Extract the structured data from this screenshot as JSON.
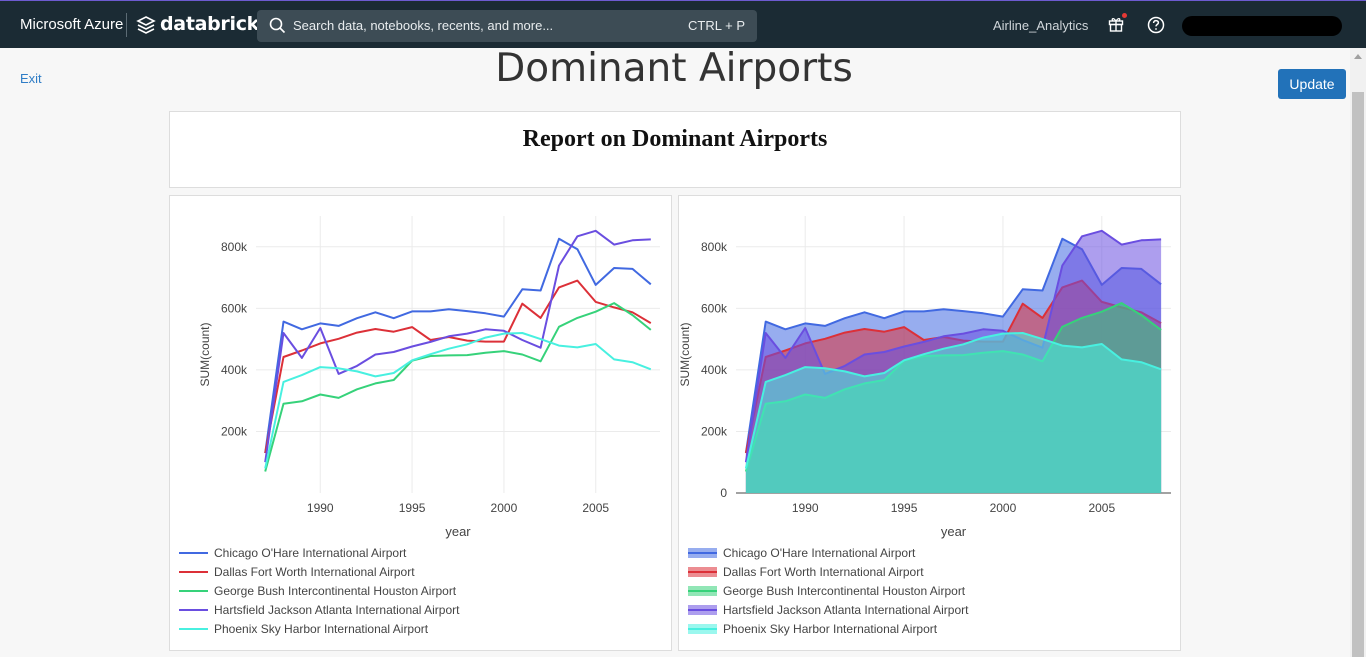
{
  "topbar": {
    "brand": "Microsoft Azure",
    "product": "databricks",
    "search_placeholder": "Search data, notebooks, recents, and more...",
    "search_shortcut": "CTRL + P",
    "workspace": "Airline_Analytics"
  },
  "page": {
    "exit_label": "Exit",
    "title": "Dominant Airports",
    "update_label": "Update",
    "report_title": "Report on Dominant Airports"
  },
  "chart_data": [
    {
      "type": "line",
      "xlabel": "year",
      "ylabel": "SUM(count)",
      "x_ticks": [
        1990,
        1995,
        2000,
        2005
      ],
      "y_ticks": [
        "200k",
        "400k",
        "600k",
        "800k"
      ],
      "ylim": [
        0,
        900000
      ],
      "xlim": [
        1986.5,
        2008.5
      ],
      "grid": true,
      "legend": "bottom-left",
      "x": [
        1987,
        1988,
        1989,
        1990,
        1991,
        1992,
        1993,
        1994,
        1995,
        1996,
        1997,
        1998,
        1999,
        2000,
        2001,
        2002,
        2003,
        2004,
        2005,
        2006,
        2007,
        2008
      ],
      "series": [
        {
          "name": "Chicago O'Hare International Airport",
          "color": "#4169e1",
          "values": [
            130000,
            557000,
            532000,
            551000,
            543000,
            568000,
            587000,
            568000,
            590000,
            590000,
            597000,
            591000,
            584000,
            573000,
            662000,
            658000,
            826000,
            792000,
            676000,
            731000,
            728000,
            678000
          ]
        },
        {
          "name": "Dallas Fort Worth International Airport",
          "color": "#dc3038",
          "values": [
            130000,
            442000,
            463000,
            486000,
            501000,
            521000,
            533000,
            524000,
            539000,
            497000,
            507000,
            495000,
            492000,
            492000,
            615000,
            569000,
            668000,
            690000,
            621000,
            603000,
            587000,
            552000
          ]
        },
        {
          "name": "George Bush Intercontinental Houston Airport",
          "color": "#36d27a",
          "values": [
            70000,
            290000,
            298000,
            320000,
            309000,
            337000,
            356000,
            367000,
            430000,
            445000,
            447000,
            448000,
            456000,
            461000,
            450000,
            428000,
            540000,
            569000,
            589000,
            617000,
            578000,
            530000
          ]
        },
        {
          "name": "Hartsfield Jackson Atlanta International Airport",
          "color": "#6a4ee0",
          "values": [
            100000,
            520000,
            439000,
            536000,
            387000,
            413000,
            450000,
            458000,
            476000,
            491000,
            509000,
            518000,
            532000,
            527000,
            497000,
            472000,
            739000,
            834000,
            852000,
            807000,
            821000,
            824000
          ]
        },
        {
          "name": "Phoenix Sky Harbor International Airport",
          "color": "#48f0e0",
          "values": [
            80000,
            361000,
            383000,
            409000,
            405000,
            395000,
            379000,
            390000,
            431000,
            451000,
            469000,
            483000,
            505000,
            518000,
            520000,
            500000,
            479000,
            473000,
            484000,
            434000,
            425000,
            402000
          ]
        }
      ]
    },
    {
      "type": "area",
      "xlabel": "year",
      "ylabel": "SUM(count)",
      "x_ticks": [
        1990,
        1995,
        2000,
        2005
      ],
      "y_ticks": [
        "0",
        "200k",
        "400k",
        "600k",
        "800k"
      ],
      "ylim": [
        0,
        900000
      ],
      "xlim": [
        1986.5,
        2008.5
      ],
      "grid": true,
      "legend": "bottom-left",
      "x": [
        1987,
        1988,
        1989,
        1990,
        1991,
        1992,
        1993,
        1994,
        1995,
        1996,
        1997,
        1998,
        1999,
        2000,
        2001,
        2002,
        2003,
        2004,
        2005,
        2006,
        2007,
        2008
      ],
      "series": [
        {
          "name": "Chicago O'Hare International Airport",
          "color": "#4169e1",
          "values": [
            130000,
            557000,
            532000,
            551000,
            543000,
            568000,
            587000,
            568000,
            590000,
            590000,
            597000,
            591000,
            584000,
            573000,
            662000,
            658000,
            826000,
            792000,
            676000,
            731000,
            728000,
            678000
          ]
        },
        {
          "name": "Dallas Fort Worth International Airport",
          "color": "#dc3038",
          "values": [
            130000,
            442000,
            463000,
            486000,
            501000,
            521000,
            533000,
            524000,
            539000,
            497000,
            507000,
            495000,
            492000,
            492000,
            615000,
            569000,
            668000,
            690000,
            621000,
            603000,
            587000,
            552000
          ]
        },
        {
          "name": "George Bush Intercontinental Houston Airport",
          "color": "#36d27a",
          "values": [
            70000,
            290000,
            298000,
            320000,
            309000,
            337000,
            356000,
            367000,
            430000,
            445000,
            447000,
            448000,
            456000,
            461000,
            450000,
            428000,
            540000,
            569000,
            589000,
            617000,
            578000,
            530000
          ]
        },
        {
          "name": "Hartsfield Jackson Atlanta International Airport",
          "color": "#6a4ee0",
          "values": [
            100000,
            520000,
            439000,
            536000,
            387000,
            413000,
            450000,
            458000,
            476000,
            491000,
            509000,
            518000,
            532000,
            527000,
            497000,
            472000,
            739000,
            834000,
            852000,
            807000,
            821000,
            824000
          ]
        },
        {
          "name": "Phoenix Sky Harbor International Airport",
          "color": "#48f0e0",
          "values": [
            80000,
            361000,
            383000,
            409000,
            405000,
            395000,
            379000,
            390000,
            431000,
            451000,
            469000,
            483000,
            505000,
            518000,
            520000,
            500000,
            479000,
            473000,
            484000,
            434000,
            425000,
            402000
          ]
        }
      ]
    }
  ]
}
